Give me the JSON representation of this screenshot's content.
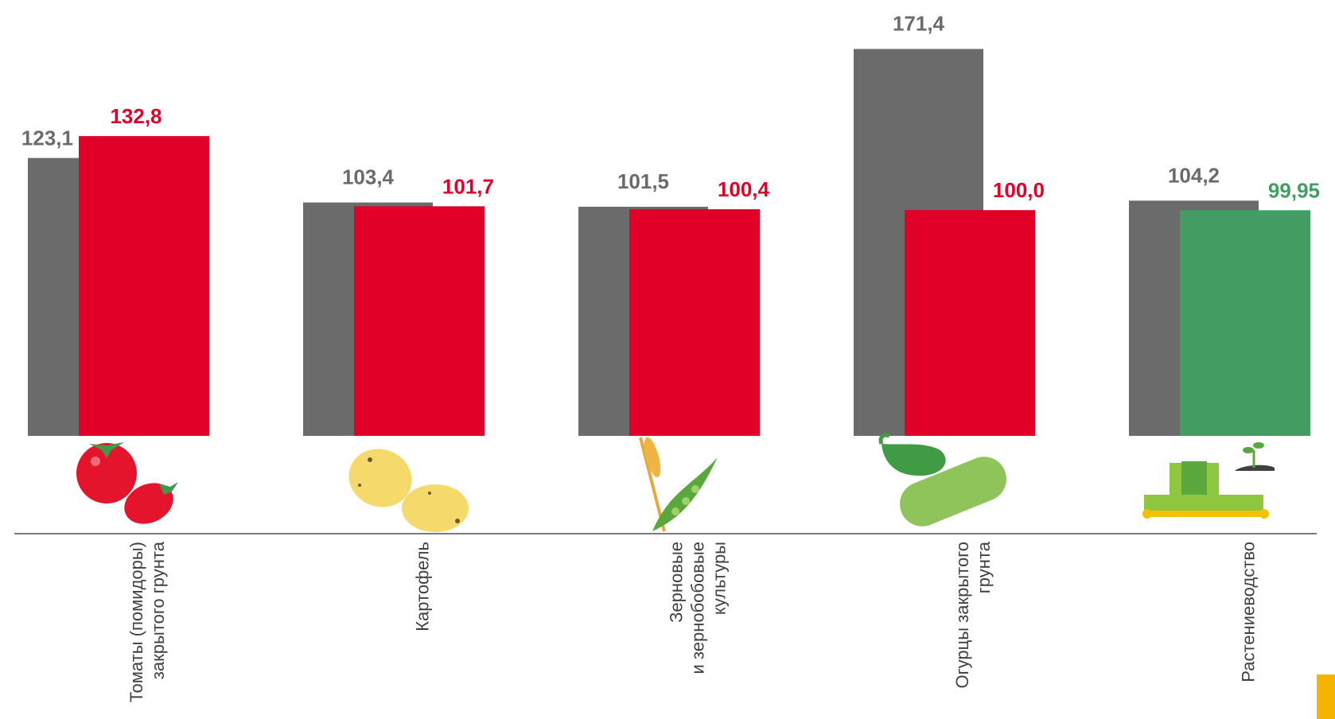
{
  "colors": {
    "gray": "#6b6b6b",
    "red": "#e00028",
    "green": "#439c62",
    "axis": "#7a7a7a",
    "accent": "#f5b400"
  },
  "chart_data": {
    "type": "bar",
    "title": "",
    "xlabel": "",
    "ylabel": "",
    "ylim": [
      0,
      180
    ],
    "categories": [
      [
        "Томаты (помидоры)",
        "закрытого  грунта"
      ],
      [
        "Картофель"
      ],
      [
        "Зерновые",
        "и зернобобовые",
        "культуры"
      ],
      [
        "Огурцы  закрытого",
        "грунта"
      ],
      [
        "Растениеводство"
      ]
    ],
    "series": [
      {
        "values": [
          123.1,
          103.4,
          101.5,
          171.4,
          104.2
        ],
        "labels": [
          "123,1",
          "103,4",
          "101,5",
          "171,4",
          "104,2"
        ]
      },
      {
        "values": [
          132.8,
          101.7,
          100.4,
          100.0,
          99.95
        ],
        "labels": [
          "132,8",
          "101,7",
          "100,4",
          "100,0",
          "99,95"
        ],
        "colors": [
          "red",
          "red",
          "red",
          "red",
          "green"
        ]
      }
    ],
    "icons": [
      "tomato-icon",
      "potato-icon",
      "grain-pea-icon",
      "cucumber-icon",
      "harvester-icon"
    ]
  }
}
